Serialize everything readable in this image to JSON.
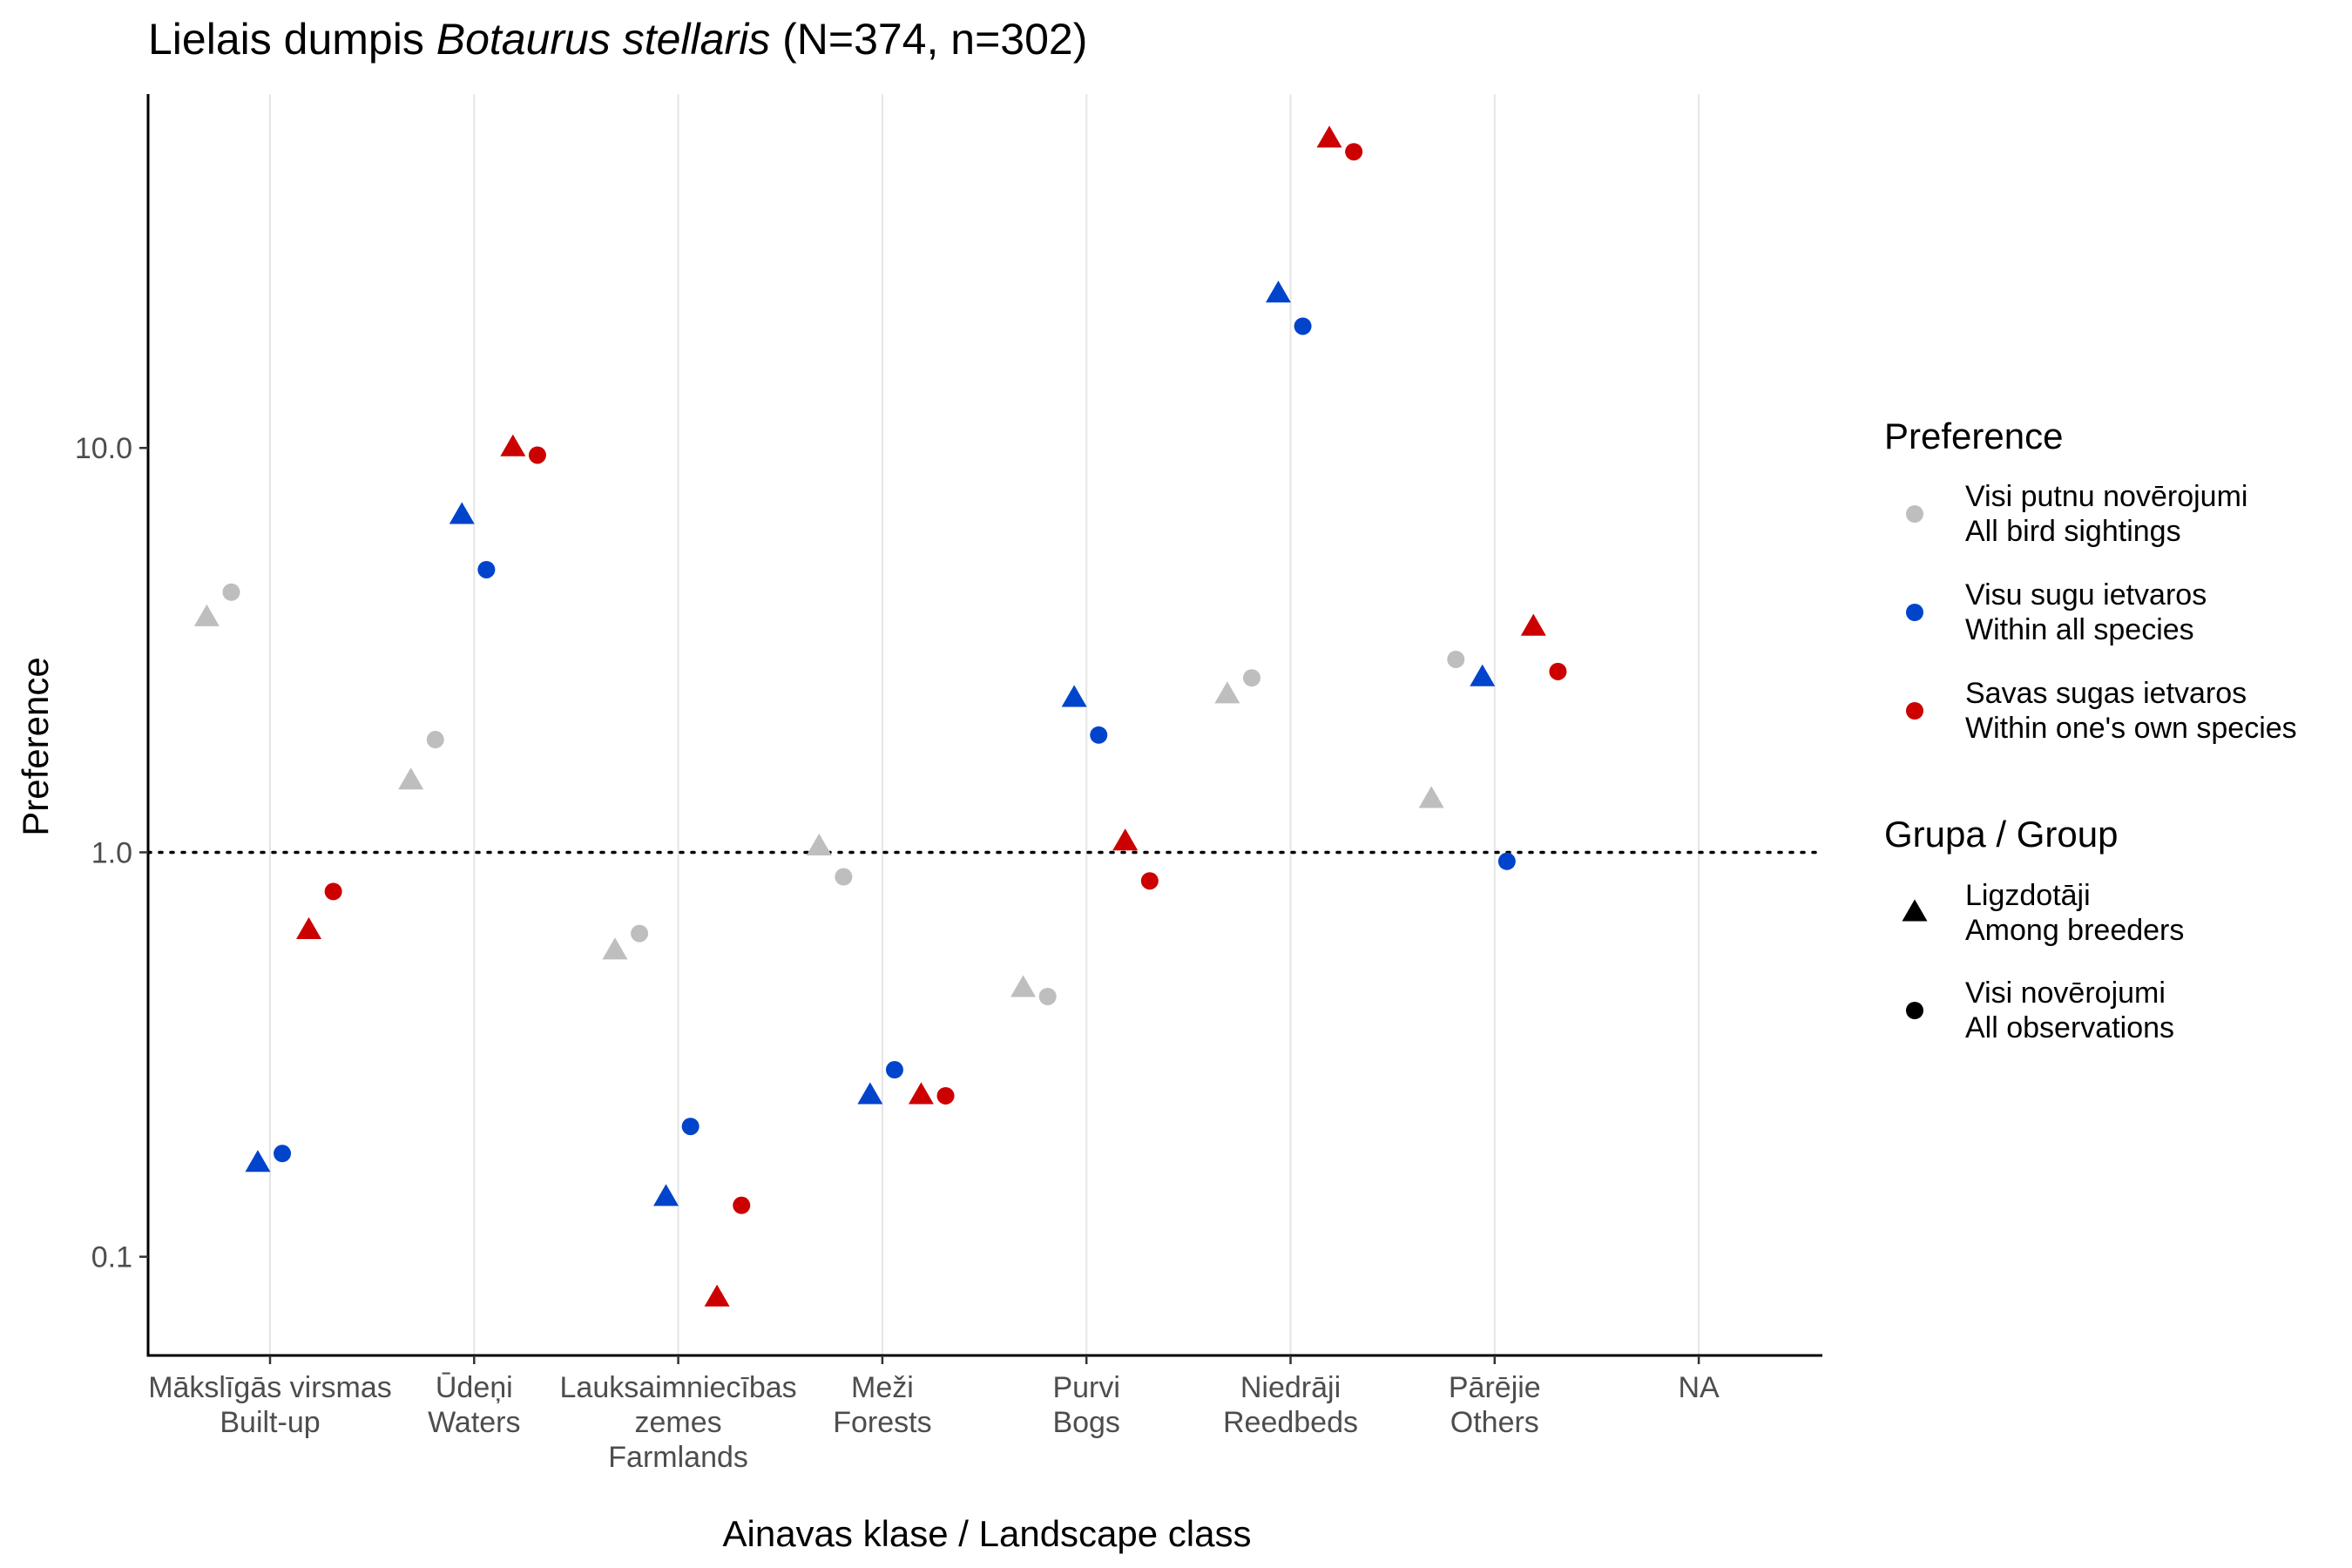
{
  "chart_data": {
    "type": "scatter",
    "title": {
      "prefix": "Lielais dumpis ",
      "species_italic": "Botaurus stellaris",
      "suffix": " (N=374, n=302)"
    },
    "xlabel": "Ainavas klase / Landscape class",
    "ylabel": "Preference",
    "y_scale": "log10",
    "ylim": [
      0.057,
      75
    ],
    "y_ticks": [
      {
        "value": 0.1,
        "label": "0.1"
      },
      {
        "value": 1.0,
        "label": "1.0"
      },
      {
        "value": 10.0,
        "label": "10.0"
      }
    ],
    "reference_line": {
      "value": 1.0,
      "style": "dotted"
    },
    "grid": "vertical-major",
    "categories": [
      {
        "lines": [
          "Mākslīgās virsmas",
          "Built-up"
        ]
      },
      {
        "lines": [
          "Ūdeņi",
          "Waters"
        ]
      },
      {
        "lines": [
          "Lauksaimniecības",
          "zemes",
          "Farmlands"
        ]
      },
      {
        "lines": [
          "Meži",
          "Forests"
        ]
      },
      {
        "lines": [
          "Purvi",
          "Bogs"
        ]
      },
      {
        "lines": [
          "Niedrāji",
          "Reedbeds"
        ]
      },
      {
        "lines": [
          "Pārējie",
          "Others"
        ]
      },
      {
        "lines": [
          "NA"
        ]
      }
    ],
    "legend_placement": "right",
    "legend": {
      "preference_title": "Preference",
      "preference_items": [
        {
          "line1": "Visi putnu novērojumi",
          "line2": "All bird sightings",
          "color": "#BEBEBE"
        },
        {
          "line1": "Visu sugu ietvaros",
          "line2": "Within all species",
          "color": "#0044CC"
        },
        {
          "line1": "Savas sugas ietvaros",
          "line2": "Within one's own species",
          "color": "#CC0000"
        }
      ],
      "group_title": "Grupa / Group",
      "group_items": [
        {
          "line1": "Ligzdotāji",
          "line2": "Among breeders",
          "shape": "triangle"
        },
        {
          "line1": "Visi novērojumi",
          "line2": "All observations",
          "shape": "circle"
        }
      ]
    },
    "series": [
      {
        "preference": "Visi putnu novērojumi",
        "group": "Ligzdotāji",
        "shape": "triangle",
        "color": "#BEBEBE",
        "offset": -0.31,
        "values": [
          3.8,
          1.5,
          0.57,
          1.03,
          0.46,
          2.45,
          1.35,
          null
        ]
      },
      {
        "preference": "Visi putnu novērojumi",
        "group": "Visi novērojumi",
        "shape": "circle",
        "color": "#BEBEBE",
        "offset": -0.19,
        "values": [
          4.4,
          1.9,
          0.63,
          0.87,
          0.44,
          2.7,
          3.0,
          null
        ]
      },
      {
        "preference": "Visu sugu ietvaros",
        "group": "Ligzdotāji",
        "shape": "triangle",
        "color": "#0044CC",
        "offset": -0.06,
        "values": [
          0.17,
          6.8,
          0.14,
          0.25,
          2.4,
          24.0,
          2.7,
          null
        ]
      },
      {
        "preference": "Visu sugu ietvaros",
        "group": "Visi novērojumi",
        "shape": "circle",
        "color": "#0044CC",
        "offset": 0.06,
        "values": [
          0.18,
          5.0,
          0.21,
          0.29,
          1.95,
          20.0,
          0.95,
          null
        ]
      },
      {
        "preference": "Savas sugas ietvaros",
        "group": "Ligzdotāji",
        "shape": "triangle",
        "color": "#CC0000",
        "offset": 0.19,
        "values": [
          0.64,
          10.0,
          0.079,
          0.25,
          1.06,
          58.0,
          3.6,
          null
        ]
      },
      {
        "preference": "Savas sugas ietvaros",
        "group": "Visi novērojumi",
        "shape": "circle",
        "color": "#CC0000",
        "offset": 0.31,
        "values": [
          0.8,
          9.6,
          0.134,
          0.25,
          0.85,
          54.0,
          2.8,
          null
        ]
      }
    ]
  }
}
